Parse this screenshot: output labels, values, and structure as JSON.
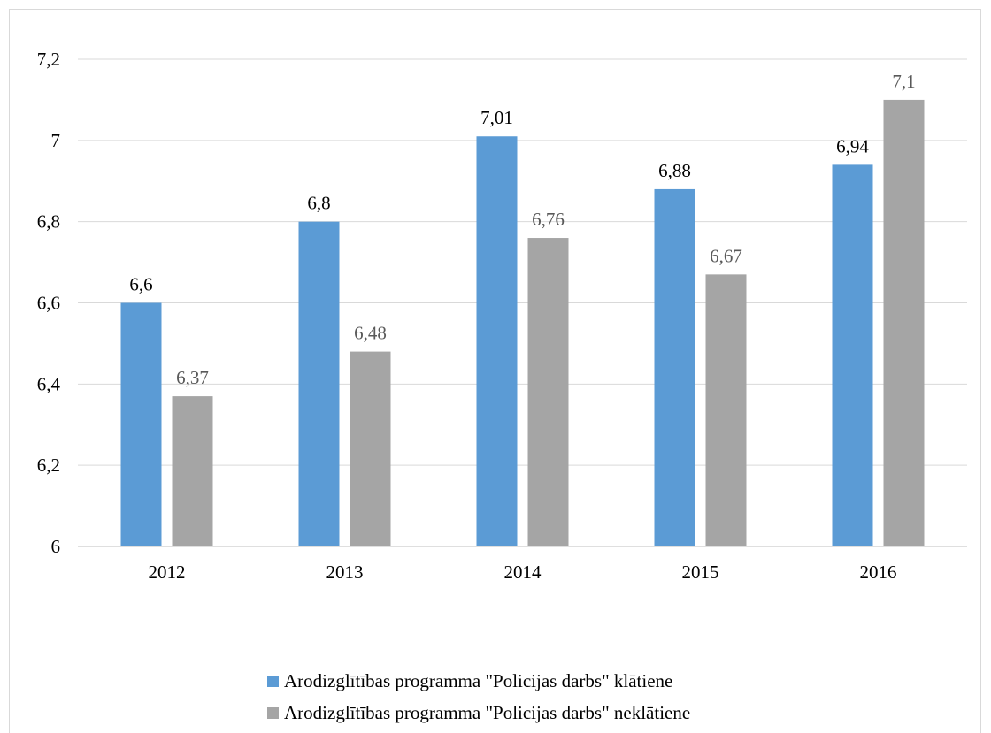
{
  "chart_data": {
    "type": "bar",
    "categories": [
      "2012",
      "2013",
      "2014",
      "2015",
      "2016"
    ],
    "series": [
      {
        "name": "Arodizglītības programma \"Policijas darbs\" klātiene",
        "color": "#5b9bd5",
        "values": [
          6.6,
          6.8,
          7.01,
          6.88,
          6.94
        ],
        "labels": [
          "6,6",
          "6,8",
          "7,01",
          "6,88",
          "6,94"
        ],
        "label_color": "#000000"
      },
      {
        "name": "Arodizglītības programma \"Policijas darbs\" neklātiene",
        "color": "#a5a5a5",
        "values": [
          6.37,
          6.48,
          6.76,
          6.67,
          7.1
        ],
        "labels": [
          "6,37",
          "6,48",
          "6,76",
          "6,67",
          "7,1"
        ],
        "label_color": "#595959"
      }
    ],
    "ylim": [
      6,
      7.2
    ],
    "yticks": [
      6,
      6.2,
      6.4,
      6.6,
      6.8,
      7,
      7.2
    ],
    "ytick_labels": [
      "6",
      "6,2",
      "6,4",
      "6,6",
      "6,8",
      "7",
      "7,2"
    ],
    "grid": true,
    "legend_position": "bottom",
    "title": "",
    "xlabel": "",
    "ylabel": ""
  },
  "legend": {
    "item1": "Arodizglītības programma \"Policijas darbs\" klātiene",
    "item2": "Arodizglītības programma \"Policijas darbs\" neklātiene"
  }
}
